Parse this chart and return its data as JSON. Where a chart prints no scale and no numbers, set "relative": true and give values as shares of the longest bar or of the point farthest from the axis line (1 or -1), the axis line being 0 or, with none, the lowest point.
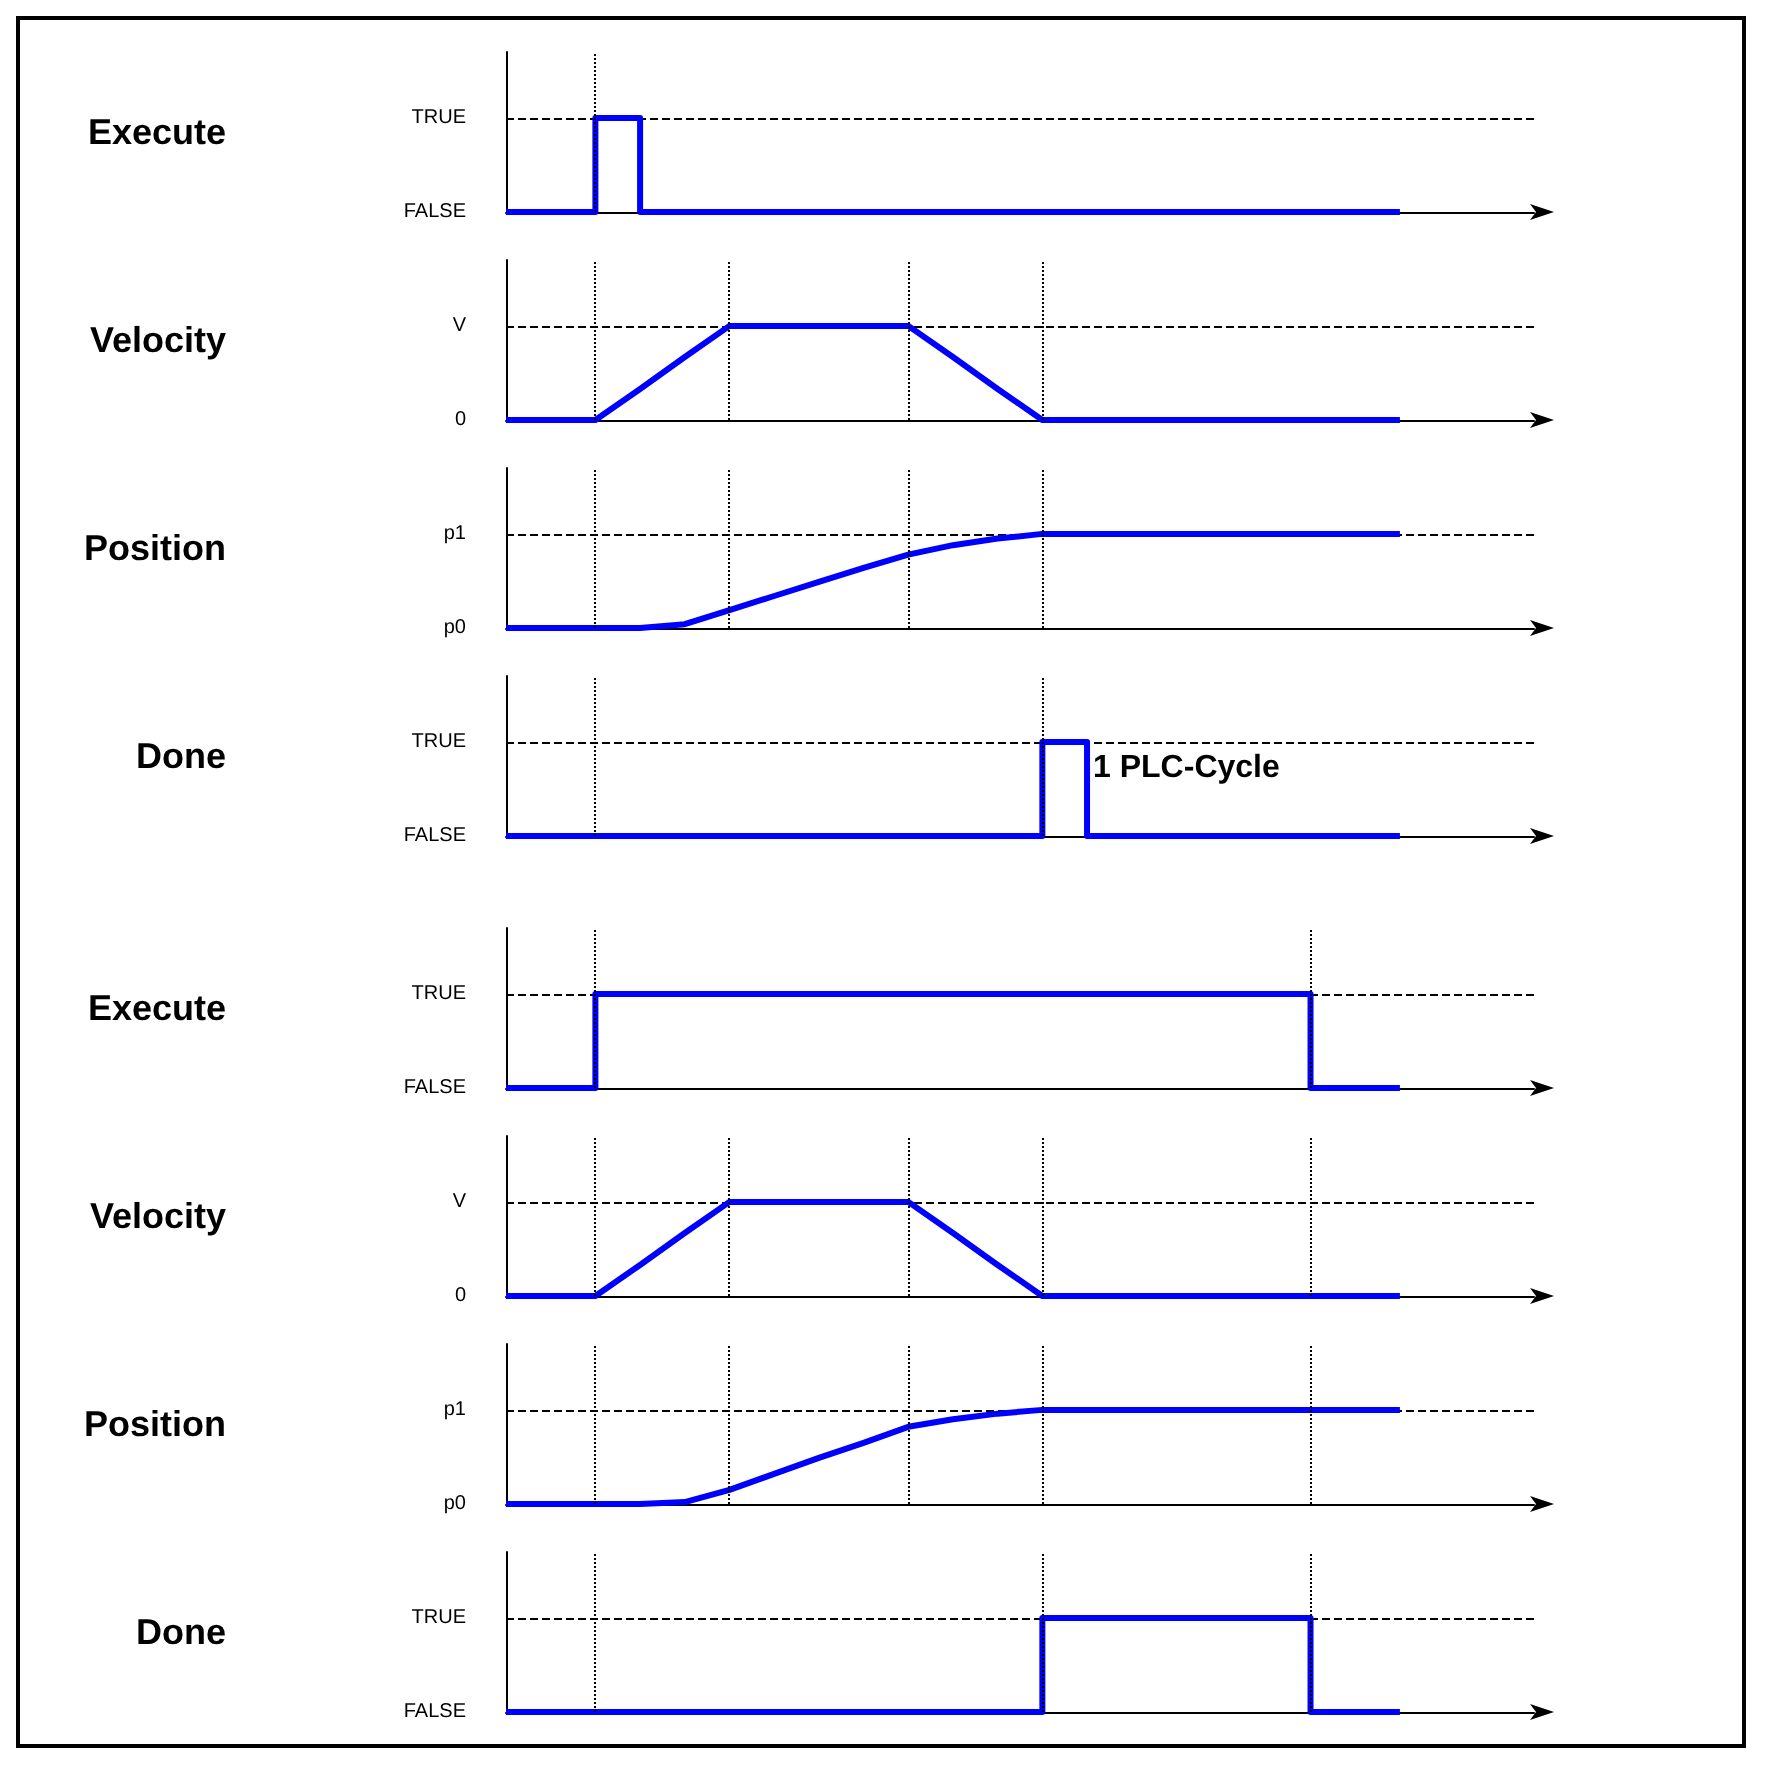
{
  "chart_data": [
    {
      "type": "step",
      "relative": true,
      "ylabel": "Execute",
      "categories": [
        null,
        null,
        null,
        null,
        null,
        null,
        null,
        null,
        null,
        null,
        null,
        null,
        null,
        null,
        null,
        null,
        null,
        null,
        null,
        null,
        null,
        null,
        null,
        null
      ],
      "values": [
        0,
        0,
        1,
        0,
        0,
        0,
        0,
        0,
        0,
        0,
        0,
        0,
        0,
        0,
        0,
        0,
        0,
        0,
        0,
        0,
        0,
        null,
        null,
        null
      ],
      "color": "#0000ff",
      "annotations": [
        "FALSE",
        "TRUE"
      ],
      "grid": true,
      "tick_labels": "y",
      "marker": "none"
    },
    {
      "type": "line",
      "relative": true,
      "ylabel": "Velocity",
      "categories": [
        null,
        null,
        null,
        null,
        null,
        null,
        null,
        null,
        null,
        null,
        null,
        null,
        null,
        null,
        null,
        null,
        null,
        null,
        null,
        null,
        null,
        null,
        null,
        null
      ],
      "values": [
        0,
        0,
        0,
        0.33,
        0.67,
        1,
        1,
        1,
        1,
        1,
        0.67,
        0.33,
        0,
        0,
        0,
        0,
        0,
        0,
        0,
        0,
        0,
        null,
        null,
        null
      ],
      "color": "#0000ff",
      "annotations": [
        "0",
        "V"
      ],
      "grid": true,
      "tick_labels": "y",
      "marker": "none"
    },
    {
      "type": "line",
      "relative": true,
      "ylabel": "Position",
      "categories": [
        null,
        null,
        null,
        null,
        null,
        null,
        null,
        null,
        null,
        null,
        null,
        null,
        null,
        null,
        null,
        null,
        null,
        null,
        null,
        null,
        null,
        null,
        null,
        null
      ],
      "values": [
        0,
        0,
        0,
        0,
        0.04,
        0.19,
        0.34,
        0.49,
        0.64,
        0.78,
        0.88,
        0.95,
        1,
        1,
        1,
        1,
        1,
        1,
        1,
        1,
        1,
        null,
        null,
        null
      ],
      "color": "#0000ff",
      "annotations": [
        "p0",
        "p1"
      ],
      "grid": true,
      "tick_labels": "y",
      "marker": "none"
    },
    {
      "type": "step",
      "relative": true,
      "ylabel": "Done",
      "categories": [
        null,
        null,
        null,
        null,
        null,
        null,
        null,
        null,
        null,
        null,
        null,
        null,
        null,
        null,
        null,
        null,
        null,
        null,
        null,
        null,
        null,
        null,
        null,
        null
      ],
      "values": [
        0,
        0,
        0,
        0,
        0,
        0,
        0,
        0,
        0,
        0,
        0,
        0,
        1,
        0,
        0,
        0,
        0,
        0,
        0,
        0,
        0,
        null,
        null,
        null
      ],
      "color": "#0000ff",
      "annotations": [
        "FALSE",
        "TRUE",
        "1 PLC-Cycle"
      ],
      "grid": true,
      "tick_labels": "y",
      "marker": "none"
    },
    {
      "type": "step",
      "relative": true,
      "ylabel": "Execute",
      "categories": [
        null,
        null,
        null,
        null,
        null,
        null,
        null,
        null,
        null,
        null,
        null,
        null,
        null,
        null,
        null,
        null,
        null,
        null,
        null,
        null,
        null,
        null,
        null,
        null
      ],
      "values": [
        0,
        0,
        1,
        1,
        1,
        1,
        1,
        1,
        1,
        1,
        1,
        1,
        1,
        1,
        1,
        1,
        1,
        1,
        0,
        0,
        0,
        null,
        null,
        null
      ],
      "color": "#0000ff",
      "annotations": [
        "FALSE",
        "TRUE"
      ],
      "grid": true,
      "tick_labels": "y",
      "marker": "none"
    },
    {
      "type": "line",
      "relative": true,
      "ylabel": "Velocity",
      "categories": [
        null,
        null,
        null,
        null,
        null,
        null,
        null,
        null,
        null,
        null,
        null,
        null,
        null,
        null,
        null,
        null,
        null,
        null,
        null,
        null,
        null,
        null,
        null,
        null
      ],
      "values": [
        0,
        0,
        0,
        0.33,
        0.67,
        1,
        1,
        1,
        1,
        1,
        0.67,
        0.33,
        0,
        0,
        0,
        0,
        0,
        0,
        0,
        0,
        0,
        null,
        null,
        null
      ],
      "color": "#0000ff",
      "annotations": [
        "0",
        "V"
      ],
      "grid": true,
      "tick_labels": "y",
      "marker": "none"
    },
    {
      "type": "line",
      "relative": true,
      "ylabel": "Position",
      "categories": [
        null,
        null,
        null,
        null,
        null,
        null,
        null,
        null,
        null,
        null,
        null,
        null,
        null,
        null,
        null,
        null,
        null,
        null,
        null,
        null,
        null,
        null,
        null,
        null
      ],
      "values": [
        0,
        0,
        0,
        0,
        0.02,
        0.15,
        0.32,
        0.49,
        0.65,
        0.82,
        0.9,
        0.96,
        1,
        1,
        1,
        1,
        1,
        1,
        1,
        1,
        1,
        null,
        null,
        null
      ],
      "color": "#0000ff",
      "annotations": [
        "p0",
        "p1"
      ],
      "grid": true,
      "tick_labels": "y",
      "marker": "none"
    },
    {
      "type": "step",
      "relative": true,
      "ylabel": "Done",
      "categories": [
        null,
        null,
        null,
        null,
        null,
        null,
        null,
        null,
        null,
        null,
        null,
        null,
        null,
        null,
        null,
        null,
        null,
        null,
        null,
        null,
        null,
        null,
        null,
        null
      ],
      "values": [
        0,
        0,
        0,
        0,
        0,
        0,
        0,
        0,
        0,
        0,
        0,
        0,
        1,
        1,
        1,
        1,
        1,
        1,
        0,
        0,
        0,
        null,
        null,
        null
      ],
      "color": "#0000ff",
      "annotations": [
        "FALSE",
        "TRUE"
      ],
      "grid": true,
      "tick_labels": "y",
      "marker": "none"
    }
  ]
}
